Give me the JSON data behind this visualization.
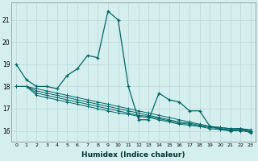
{
  "xlabel": "Humidex (Indice chaleur)",
  "background_color": "#d5eeee",
  "grid_color": "#b8d8d8",
  "line_color": "#006666",
  "xlim": [
    -0.5,
    23.5
  ],
  "ylim": [
    15.5,
    21.8
  ],
  "yticks": [
    16,
    17,
    18,
    19,
    20,
    21
  ],
  "xticks": [
    0,
    1,
    2,
    3,
    4,
    5,
    6,
    7,
    8,
    9,
    10,
    11,
    12,
    13,
    14,
    15,
    16,
    17,
    18,
    19,
    20,
    21,
    22,
    23
  ],
  "x": [
    0,
    1,
    2,
    3,
    4,
    5,
    6,
    7,
    8,
    9,
    10,
    11,
    12,
    13,
    14,
    15,
    16,
    17,
    18,
    19,
    20,
    21,
    22,
    23
  ],
  "main_series": [
    19.0,
    18.3,
    18.0,
    18.0,
    17.9,
    18.5,
    18.8,
    19.4,
    19.3,
    21.4,
    21.0,
    18.0,
    16.5,
    16.5,
    17.7,
    17.4,
    17.3,
    16.9,
    16.9,
    16.2,
    16.1,
    16.0,
    16.1,
    15.9
  ],
  "band_series": [
    [
      18.0,
      18.0,
      17.9,
      17.8,
      17.7,
      17.6,
      17.5,
      17.4,
      17.3,
      17.2,
      17.1,
      17.0,
      16.9,
      16.8,
      16.7,
      16.6,
      16.5,
      16.4,
      16.3,
      16.2,
      16.15,
      16.1,
      16.1,
      16.05
    ],
    [
      18.0,
      18.0,
      17.8,
      17.7,
      17.6,
      17.5,
      17.4,
      17.3,
      17.2,
      17.1,
      17.0,
      16.9,
      16.8,
      16.7,
      16.6,
      16.5,
      16.4,
      16.35,
      16.25,
      16.2,
      16.15,
      16.1,
      16.1,
      16.0
    ],
    [
      18.0,
      18.0,
      17.7,
      17.6,
      17.5,
      17.4,
      17.3,
      17.2,
      17.1,
      17.0,
      16.9,
      16.8,
      16.7,
      16.65,
      16.55,
      16.45,
      16.35,
      16.3,
      16.2,
      16.15,
      16.1,
      16.05,
      16.05,
      16.0
    ],
    [
      18.0,
      18.0,
      17.6,
      17.5,
      17.4,
      17.3,
      17.2,
      17.1,
      17.0,
      16.9,
      16.8,
      16.75,
      16.65,
      16.6,
      16.5,
      16.4,
      16.3,
      16.25,
      16.2,
      16.1,
      16.05,
      16.0,
      16.0,
      15.95
    ]
  ]
}
